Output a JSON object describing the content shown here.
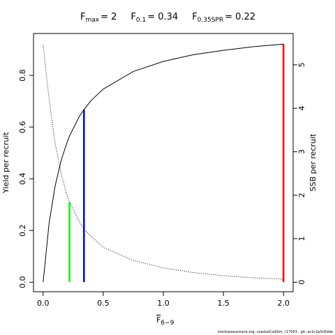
{
  "chart_data": {
    "type": "line",
    "title_items": [
      {
        "symbol": "F",
        "subscript": "max",
        "value": "= 2"
      },
      {
        "symbol": "F",
        "subscript": "0.1",
        "value": "= 0.34"
      },
      {
        "symbol": "F",
        "subscript": "0.35SPR",
        "value": "= 0.22"
      }
    ],
    "xlabel": {
      "symbol": "F",
      "subscript": "6−9"
    },
    "ylabel": "Yield per recruit",
    "y2label": "SSB per recruit",
    "footer": "stockassessment.org, coastalCodSim, r17003 , git: ec2c2a0c6dde",
    "x": [
      0,
      0.05,
      0.1,
      0.15,
      0.2,
      0.22,
      0.3,
      0.34,
      0.4,
      0.5,
      0.75,
      1,
      1.25,
      1.5,
      1.75,
      2
    ],
    "series": [
      {
        "name": "Yield per recruit",
        "color": "#000000",
        "dash": false,
        "values": [
          0,
          0.229,
          0.372,
          0.471,
          0.542,
          0.566,
          0.64,
          0.668,
          0.703,
          0.747,
          0.815,
          0.854,
          0.88,
          0.897,
          0.911,
          0.921
        ]
      },
      {
        "name": "SSB per recruit",
        "color": "#000000",
        "dash": true,
        "axis": "y2",
        "values": [
          5.45,
          4.2,
          3.2,
          2.5,
          1.98,
          1.84,
          1.4,
          1.22,
          1.05,
          0.8,
          0.5,
          0.33,
          0.22,
          0.15,
          0.1,
          0.07
        ]
      }
    ],
    "reference_lines": [
      {
        "x": 0.22,
        "y": 1.84,
        "axis": "y2",
        "color": "#00ff00"
      },
      {
        "x": 0.34,
        "y": 0.668,
        "axis": "y",
        "color": "#0000ff"
      },
      {
        "x": 2,
        "y": 0.921,
        "axis": "y",
        "color": "#ff0000"
      }
    ],
    "xlim": [
      -0.08,
      2.08
    ],
    "ylim": [
      -0.037,
      0.962
    ],
    "y2lim": [
      -0.22,
      5.72
    ],
    "xticks": [
      {
        "value": 0,
        "label": "0.0"
      },
      0.5,
      {
        "value": 1,
        "label": "1.0"
      },
      1.5,
      {
        "value": 2,
        "label": "2.0"
      }
    ],
    "yticks": [
      {
        "value": 0,
        "label": "0.0"
      },
      0.2,
      0.4,
      0.6,
      0.8
    ],
    "y2ticks": [
      0,
      1,
      2,
      3,
      4,
      5
    ]
  }
}
